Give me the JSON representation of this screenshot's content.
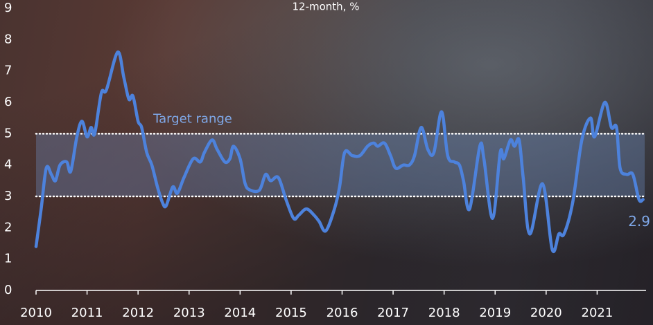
{
  "chart_data": {
    "type": "line",
    "subtitle": "12-month, %",
    "x": [
      2010.0,
      2010.1,
      2010.2,
      2010.3,
      2010.38,
      2010.47,
      2010.6,
      2010.68,
      2010.8,
      2010.9,
      2011.0,
      2011.08,
      2011.15,
      2011.28,
      2011.38,
      2011.6,
      2011.72,
      2011.82,
      2011.9,
      2012.0,
      2012.07,
      2012.17,
      2012.27,
      2012.38,
      2012.48,
      2012.55,
      2012.68,
      2012.77,
      2012.9,
      2013.08,
      2013.22,
      2013.3,
      2013.45,
      2013.55,
      2013.7,
      2013.8,
      2013.87,
      2014.0,
      2014.1,
      2014.2,
      2014.38,
      2014.5,
      2014.6,
      2014.75,
      2014.9,
      2015.05,
      2015.15,
      2015.3,
      2015.45,
      2015.55,
      2015.68,
      2015.85,
      2015.95,
      2016.05,
      2016.2,
      2016.35,
      2016.5,
      2016.62,
      2016.7,
      2016.83,
      2016.95,
      2017.05,
      2017.2,
      2017.32,
      2017.42,
      2017.55,
      2017.68,
      2017.8,
      2017.95,
      2018.07,
      2018.2,
      2018.3,
      2018.38,
      2018.5,
      2018.7,
      2018.78,
      2018.95,
      2019.1,
      2019.17,
      2019.3,
      2019.38,
      2019.47,
      2019.55,
      2019.68,
      2019.93,
      2020.12,
      2020.25,
      2020.35,
      2020.52,
      2020.7,
      2020.87,
      2020.95,
      2021.15,
      2021.28,
      2021.38,
      2021.45,
      2021.58,
      2021.7,
      2021.82,
      2021.9
    ],
    "values": [
      1.4,
      2.6,
      3.9,
      3.7,
      3.5,
      4.0,
      4.1,
      3.8,
      4.9,
      5.4,
      4.9,
      5.2,
      5.0,
      6.3,
      6.4,
      7.6,
      6.8,
      6.1,
      6.2,
      5.4,
      5.2,
      4.4,
      4.0,
      3.3,
      2.8,
      2.7,
      3.3,
      3.1,
      3.6,
      4.2,
      4.1,
      4.4,
      4.8,
      4.5,
      4.1,
      4.2,
      4.6,
      4.2,
      3.4,
      3.2,
      3.2,
      3.7,
      3.5,
      3.6,
      2.9,
      2.3,
      2.4,
      2.6,
      2.4,
      2.2,
      1.9,
      2.6,
      3.3,
      4.4,
      4.3,
      4.3,
      4.6,
      4.7,
      4.6,
      4.7,
      4.3,
      3.9,
      4.0,
      4.0,
      4.3,
      5.2,
      4.5,
      4.4,
      5.7,
      4.3,
      4.1,
      4.0,
      3.5,
      2.6,
      4.6,
      4.2,
      2.3,
      4.4,
      4.2,
      4.8,
      4.6,
      4.8,
      3.6,
      1.8,
      3.4,
      1.3,
      1.8,
      1.8,
      2.8,
      4.8,
      5.5,
      4.9,
      6.0,
      5.2,
      5.2,
      3.9,
      3.7,
      3.7,
      2.9,
      2.9
    ],
    "color": "#4d82dc",
    "label_color": "#7fa8e8",
    "target_range": {
      "label": "Target range",
      "range": [
        3,
        5
      ],
      "color": "#6f8fc4"
    },
    "xlim": [
      2010,
      2022
    ],
    "xticks": [
      2010,
      2011,
      2012,
      2013,
      2014,
      2015,
      2016,
      2017,
      2018,
      2019,
      2020,
      2021
    ],
    "ylim": [
      0,
      9
    ],
    "yticks": [
      0,
      1,
      2,
      3,
      4,
      5,
      6,
      7,
      8,
      9
    ]
  }
}
